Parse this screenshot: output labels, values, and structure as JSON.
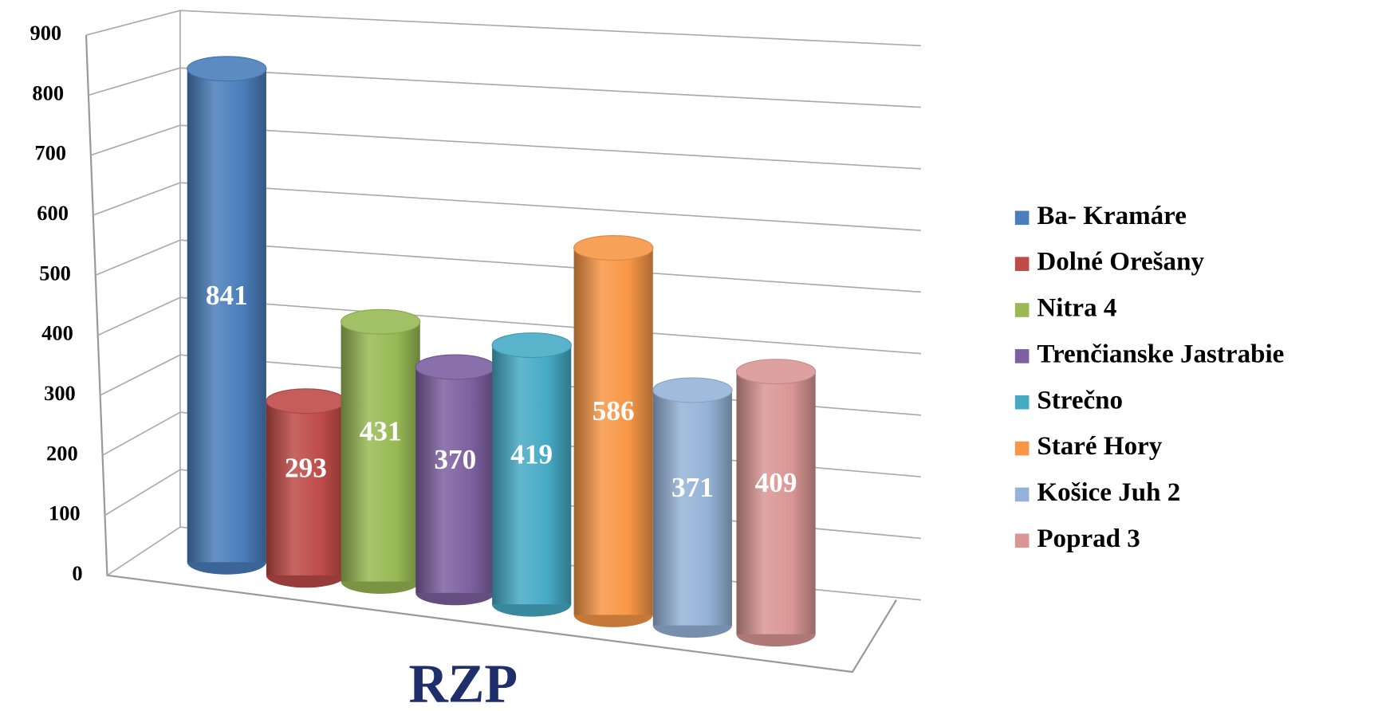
{
  "chart_data": {
    "type": "bar",
    "x_label": "RZP",
    "categories": [
      "RZP"
    ],
    "ylim": [
      0,
      900
    ],
    "yticks": [
      0,
      100,
      200,
      300,
      400,
      500,
      600,
      700,
      800,
      900
    ],
    "grid": true,
    "legend": "right",
    "series": [
      {
        "name": "Ba- Kramáre",
        "color": "#4a7ebb",
        "values": [
          841
        ]
      },
      {
        "name": "Dolné Orešany",
        "color": "#be4b48",
        "values": [
          293
        ]
      },
      {
        "name": "Nitra 4",
        "color": "#98b954",
        "values": [
          431
        ]
      },
      {
        "name": "Trenčianske Jastrabie",
        "color": "#7d60a0",
        "values": [
          370
        ]
      },
      {
        "name": "Strečno",
        "color": "#46aac5",
        "values": [
          419
        ]
      },
      {
        "name": "Staré Hory",
        "color": "#f79646",
        "values": [
          586
        ]
      },
      {
        "name": "Košice Juh 2",
        "color": "#95b3d7",
        "values": [
          371
        ]
      },
      {
        "name": "Poprad 3",
        "color": "#d99694",
        "values": [
          409
        ]
      }
    ]
  }
}
